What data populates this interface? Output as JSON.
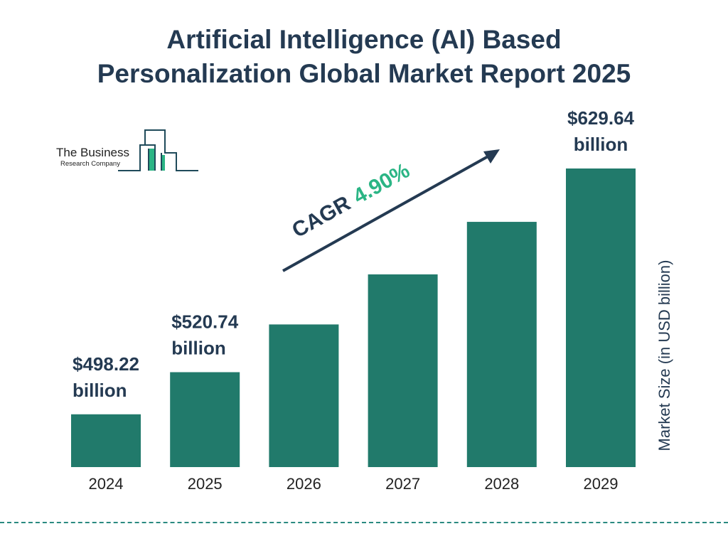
{
  "title_lines": [
    "Artificial Intelligence (AI) Based",
    "Personalization Global Market Report 2025"
  ],
  "logo": {
    "line1": "The Business",
    "line2": "Research Company"
  },
  "colors": {
    "bar": "#217a6b",
    "title": "#243a52",
    "cagr_value": "#2bb585",
    "logo_accent": "#2bb585",
    "logo_stroke": "#1f4a5a"
  },
  "chart_data": {
    "type": "bar",
    "categories": [
      "2024",
      "2025",
      "2026",
      "2027",
      "2028",
      "2029"
    ],
    "values": [
      498.22,
      520.74,
      546.26,
      573.03,
      601.11,
      629.64
    ],
    "data_labels": [
      {
        "category": "2024",
        "value": "$498.22",
        "unit": "billion"
      },
      {
        "category": "2025",
        "value": "$520.74",
        "unit": "billion"
      },
      {
        "category": "2029",
        "value": "$629.64",
        "unit": "billion"
      }
    ],
    "ylabel": "Market Size (in USD billion)",
    "xlabel": "",
    "annotation": {
      "label": "CAGR",
      "value": "4.90%"
    },
    "grid": false,
    "legend": "none"
  }
}
